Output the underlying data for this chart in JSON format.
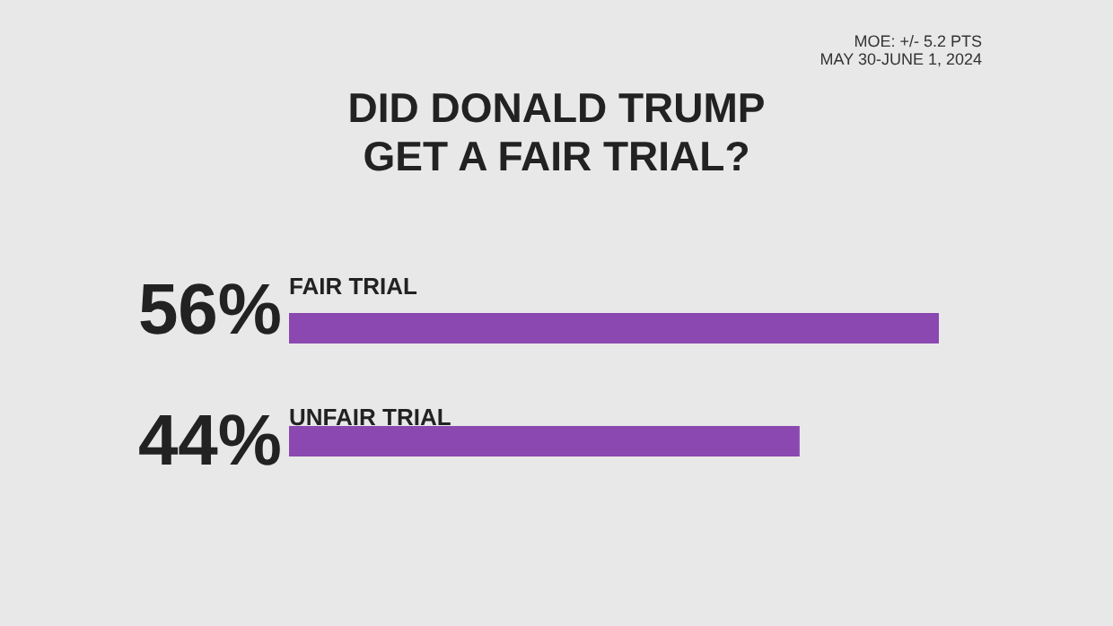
{
  "chart_data": {
    "type": "bar",
    "orientation": "horizontal",
    "title": "DID DONALD TRUMP GET A FAIR TRIAL?",
    "annotations": [
      "MOE: +/- 5.2 PTS",
      "MAY 30-JUNE 1, 2024"
    ],
    "categories": [
      "FAIR TRIAL",
      "UNFAIR TRIAL"
    ],
    "values": [
      56,
      44
    ],
    "value_labels": [
      "56%",
      "44%"
    ],
    "color": "#8b48b0"
  }
}
